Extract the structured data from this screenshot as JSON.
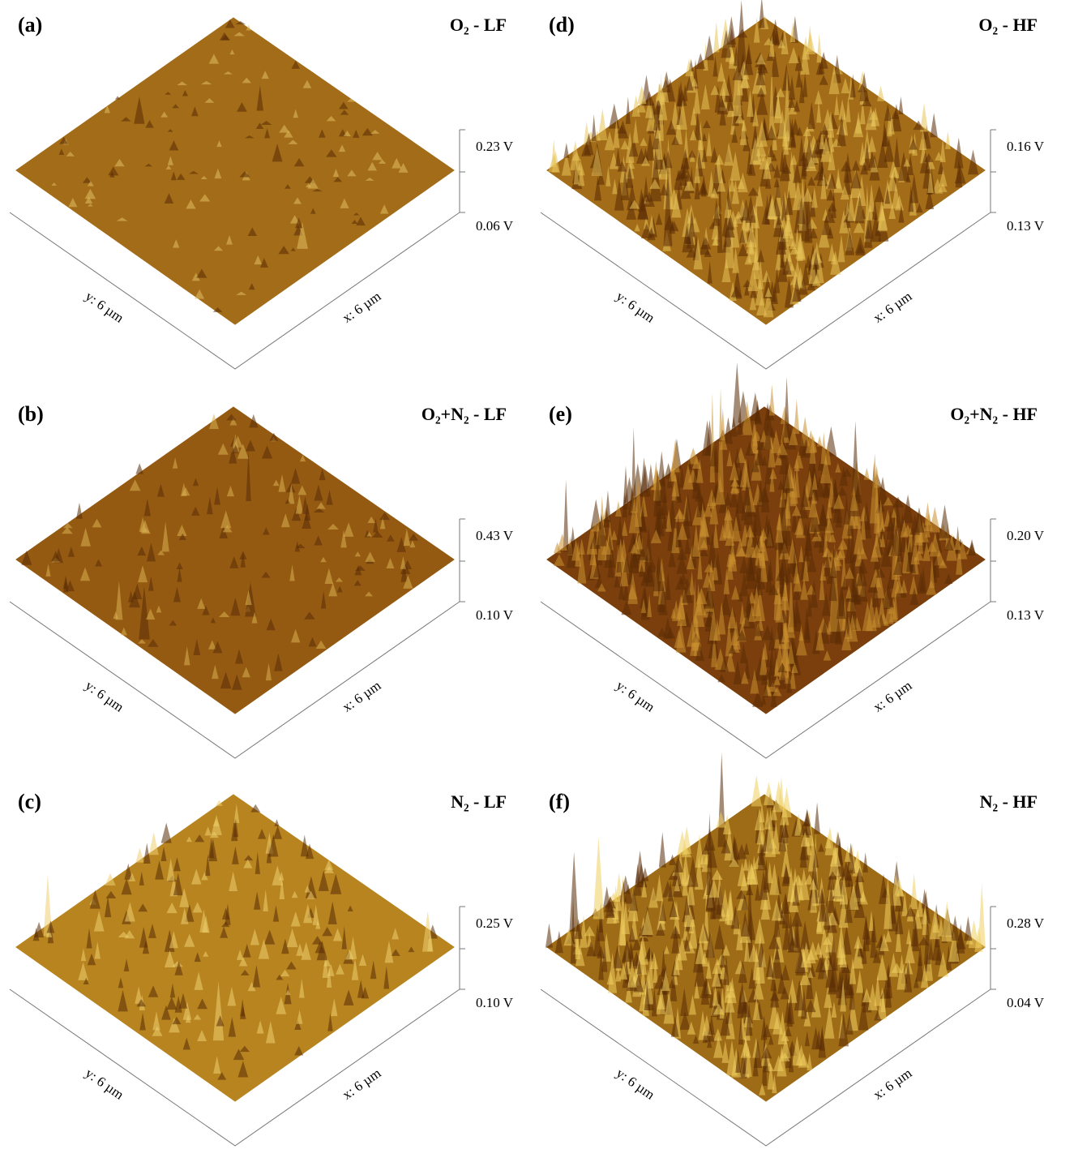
{
  "panels": [
    {
      "label": "(a)",
      "title": "O₂ - LF",
      "z_top": "0.23 V",
      "z_bottom": "0.06 V",
      "y_axis": "y: 6 µm",
      "x_axis": "x: 6 µm"
    },
    {
      "label": "(b)",
      "title": "O₂+N₂ - LF",
      "z_top": "0.43 V",
      "z_bottom": "0.10 V",
      "y_axis": "y: 6 µm",
      "x_axis": "x: 6 µm"
    },
    {
      "label": "(c)",
      "title": "N₂ - LF",
      "z_top": "0.25 V",
      "z_bottom": "0.10 V",
      "y_axis": "y: 6 µm",
      "x_axis": "x: 6 µm"
    },
    {
      "label": "(d)",
      "title": "O₂ - HF",
      "z_top": "0.16 V",
      "z_bottom": "0.13 V",
      "y_axis": "y: 6 µm",
      "x_axis": "x: 6 µm"
    },
    {
      "label": "(e)",
      "title": "O₂+N₂ - HF",
      "z_top": "0.20 V",
      "z_bottom": "0.13 V",
      "y_axis": "y: 6 µm",
      "x_axis": "x: 6 µm"
    },
    {
      "label": "(f)",
      "title": "N₂ - HF",
      "z_top": "0.28 V",
      "z_bottom": "0.04 V",
      "y_axis": "y: 6 µm",
      "x_axis": "x: 6 µm"
    }
  ]
}
